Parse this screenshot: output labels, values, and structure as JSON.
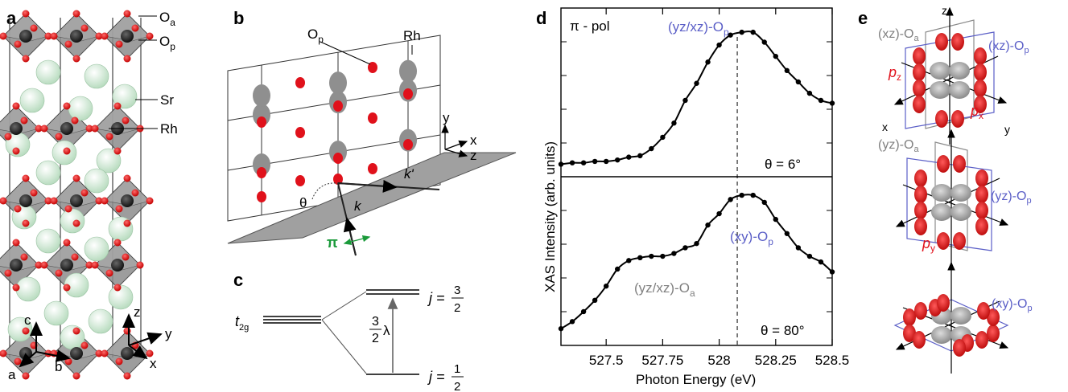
{
  "panel_labels": {
    "a": "a",
    "b": "b",
    "c": "c",
    "d": "d",
    "e": "e"
  },
  "panel_a": {
    "oa": "O",
    "oa_sub": "a",
    "op": "O",
    "op_sub": "p",
    "sr": "Sr",
    "rh": "Rh",
    "axes": {
      "c": "c",
      "a": "a",
      "b": "b",
      "z": "z",
      "y": "y",
      "x": "x"
    }
  },
  "panel_b": {
    "op": "O",
    "op_sub": "p",
    "rh": "Rh",
    "axes": {
      "y": "y",
      "x": "x",
      "z": "z"
    },
    "theta": "θ",
    "k": "k",
    "k_prime": "k'",
    "pi": "π"
  },
  "panel_c": {
    "t2g": "t",
    "t2g_sub": "2g",
    "j_upper": "j =",
    "j_upper_num": "3",
    "j_upper_den": "2",
    "j_lower": "j =",
    "j_lower_num": "1",
    "j_lower_den": "2",
    "lambda_num": "3",
    "lambda_den": "2",
    "lambda": "λ"
  },
  "panel_d": {
    "pol": "π - pol",
    "ylabel": "XAS Intensity (arb. units)",
    "xlabel": "Photon Energy (eV)",
    "peak_top": "(yz/xz)-O",
    "peak_top_sub": "p",
    "peak_bottom": "(xy)-O",
    "peak_bottom_sub": "p",
    "shoulder": "(yz/xz)-O",
    "shoulder_sub": "a",
    "theta_top": "θ = 6°",
    "theta_bottom": "θ = 80°",
    "colors": {
      "blue": "#5b5fc7",
      "gray": "#808080",
      "red": "#e0111b",
      "green": "#1a9a3a"
    }
  },
  "panel_e": {
    "top_left": "(xz)-O",
    "top_left_sub": "a",
    "top_right": "(xz)-O",
    "top_right_sub": "p",
    "pz": "p",
    "pz_sub": "z",
    "px": "p",
    "px_sub": "x",
    "x": "x",
    "y": "y",
    "z": "z",
    "mid_left": "(yz)-O",
    "mid_left_sub": "a",
    "mid_right": "(yz)-O",
    "mid_right_sub": "p",
    "py": "p",
    "py_sub": "y",
    "bot_right": "(xy)-O",
    "bot_right_sub": "p"
  },
  "chart_data": {
    "type": "line",
    "xlabel": "Photon Energy (eV)",
    "ylabel": "XAS Intensity (arb. units)",
    "xlim": [
      527.3,
      528.5
    ],
    "x_ticks": [
      "527.5",
      "527.75",
      "528",
      "528.25",
      "528.5"
    ],
    "x_tick_values": [
      527.5,
      527.75,
      528.0,
      528.25,
      528.5
    ],
    "marker_line_x": 528.08,
    "series": [
      {
        "name": "θ = 6°",
        "x": [
          527.3,
          527.35,
          527.4,
          527.45,
          527.5,
          527.55,
          527.6,
          527.65,
          527.7,
          527.75,
          527.8,
          527.85,
          527.9,
          527.95,
          528.0,
          528.05,
          528.1,
          528.15,
          528.2,
          528.25,
          528.3,
          528.35,
          528.4,
          528.45,
          528.5
        ],
        "y": [
          0.02,
          0.03,
          0.03,
          0.04,
          0.04,
          0.05,
          0.07,
          0.08,
          0.13,
          0.21,
          0.31,
          0.47,
          0.59,
          0.74,
          0.86,
          0.93,
          0.95,
          0.95,
          0.88,
          0.78,
          0.68,
          0.6,
          0.52,
          0.47,
          0.45
        ]
      },
      {
        "name": "θ = 80°",
        "x": [
          527.3,
          527.35,
          527.4,
          527.45,
          527.5,
          527.55,
          527.6,
          527.65,
          527.7,
          527.75,
          527.8,
          527.85,
          527.9,
          527.95,
          528.0,
          528.05,
          528.1,
          528.15,
          528.2,
          528.25,
          528.3,
          528.35,
          528.4,
          528.45,
          528.5
        ],
        "y": [
          0.05,
          0.1,
          0.17,
          0.25,
          0.35,
          0.47,
          0.53,
          0.55,
          0.56,
          0.56,
          0.58,
          0.62,
          0.65,
          0.78,
          0.86,
          0.96,
          0.99,
          0.99,
          0.94,
          0.82,
          0.72,
          0.62,
          0.56,
          0.52,
          0.45
        ]
      }
    ]
  }
}
